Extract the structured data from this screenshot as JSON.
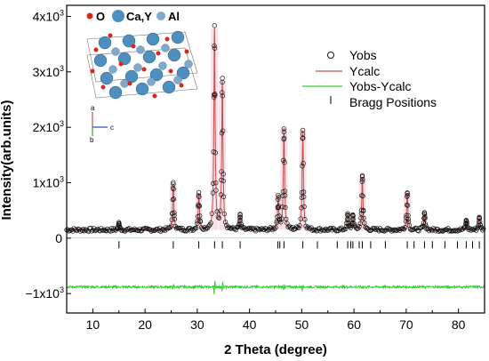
{
  "chart_data": {
    "type": "scatter",
    "title": "",
    "xlabel": "2 Theta (degree)",
    "ylabel": "Intensity(arb.units)",
    "xlim": [
      5,
      85
    ],
    "ylim": [
      -1350,
      4200
    ],
    "x_ticks": [
      10,
      20,
      30,
      40,
      50,
      60,
      70,
      80
    ],
    "y_ticks": [
      {
        "value": 4000,
        "mant": "4x10",
        "exp": "3"
      },
      {
        "value": 3000,
        "mant": "3x10",
        "exp": "3"
      },
      {
        "value": 2000,
        "mant": "2x10",
        "exp": "3"
      },
      {
        "value": 1000,
        "mant": "1x10",
        "exp": "3"
      },
      {
        "value": 0,
        "mant": "0",
        "exp": ""
      },
      {
        "value": -1000,
        "mant": "−1x10",
        "exp": "3"
      }
    ],
    "background": 150,
    "diff_offset": -880,
    "bragg_y": -120,
    "peaks": [
      {
        "x": 15.0,
        "y": 270
      },
      {
        "x": 25.4,
        "y": 980
      },
      {
        "x": 30.3,
        "y": 800
      },
      {
        "x": 33.3,
        "y": 3780
      },
      {
        "x": 34.8,
        "y": 2830
      },
      {
        "x": 38.2,
        "y": 400
      },
      {
        "x": 45.5,
        "y": 740
      },
      {
        "x": 46.6,
        "y": 1980
      },
      {
        "x": 50.2,
        "y": 1950
      },
      {
        "x": 58.8,
        "y": 430
      },
      {
        "x": 59.8,
        "y": 420
      },
      {
        "x": 61.6,
        "y": 1110
      },
      {
        "x": 70.2,
        "y": 820
      },
      {
        "x": 73.5,
        "y": 460
      },
      {
        "x": 81.5,
        "y": 330
      },
      {
        "x": 84.0,
        "y": 380
      }
    ],
    "bragg_positions": [
      15.0,
      25.4,
      30.3,
      33.3,
      34.8,
      38.2,
      45.4,
      45.8,
      46.6,
      50.2,
      53.0,
      56.8,
      58.8,
      59.4,
      59.8,
      61.0,
      61.6,
      63.2,
      66.0,
      70.2,
      71.5,
      73.5,
      75.0,
      77.4,
      79.8,
      81.5,
      82.7,
      84.0
    ],
    "legend": {
      "placement": "top-right",
      "entries": [
        {
          "label": "Yobs",
          "marker": "open-circle",
          "color": "#000000"
        },
        {
          "label": "Ycalc",
          "marker": "line",
          "color": "#c0504d"
        },
        {
          "label": "Yobs-Ycalc",
          "marker": "line",
          "color": "#33cc33"
        },
        {
          "label": "Bragg Positions",
          "marker": "tick",
          "color": "#000000"
        }
      ]
    },
    "colors": {
      "obs": "#111111",
      "calc": "#c0504d",
      "diff": "#33cc33",
      "bragg": "#000000",
      "highlight": "#f5c6d6"
    },
    "inset": {
      "legend": [
        {
          "label": "O",
          "color": "#d9261c"
        },
        {
          "label": "Ca,Y",
          "color": "#4f8fbf"
        },
        {
          "label": "Al",
          "color": "#7ea9c9"
        }
      ],
      "axes_labels": [
        "a",
        "c",
        "b"
      ]
    }
  }
}
